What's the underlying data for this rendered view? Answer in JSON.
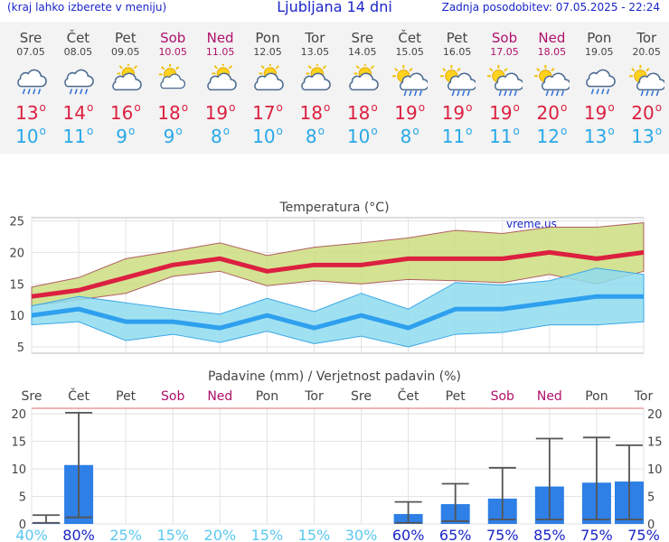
{
  "header": {
    "location_note": "(kraj lahko izberete v meniju)",
    "title": "Ljubljana 14 dni",
    "updated": "Zadnja posodobitev: 07.05.2025 - 22:24"
  },
  "colors": {
    "weekend": "#b0106a",
    "tmax": "#dc2040",
    "tmin": "#28a8e8",
    "precip_bar": "#2e7fe6",
    "prob_low": "#5bc8f0",
    "prob_high": "#1a25c8"
  },
  "days": [
    {
      "name": "Sre",
      "date": "07.05",
      "weekend": false,
      "icon": "cloud-rain-icon",
      "tmax": "13",
      "tmin": "10"
    },
    {
      "name": "Čet",
      "date": "08.05",
      "weekend": false,
      "icon": "cloud-rain-icon",
      "tmax": "14",
      "tmin": "11"
    },
    {
      "name": "Pet",
      "date": "09.05",
      "weekend": false,
      "icon": "partly-cloudy-icon",
      "tmax": "16",
      "tmin": "9"
    },
    {
      "name": "Sob",
      "date": "10.05",
      "weekend": true,
      "icon": "sun-cloud-icon",
      "tmax": "18",
      "tmin": "9"
    },
    {
      "name": "Ned",
      "date": "11.05",
      "weekend": true,
      "icon": "partly-cloudy-icon",
      "tmax": "19",
      "tmin": "8"
    },
    {
      "name": "Pon",
      "date": "12.05",
      "weekend": false,
      "icon": "partly-cloudy-icon",
      "tmax": "17",
      "tmin": "10"
    },
    {
      "name": "Tor",
      "date": "13.05",
      "weekend": false,
      "icon": "partly-cloudy-icon",
      "tmax": "18",
      "tmin": "8"
    },
    {
      "name": "Sre",
      "date": "14.05",
      "weekend": false,
      "icon": "partly-cloudy-icon",
      "tmax": "18",
      "tmin": "10"
    },
    {
      "name": "Čet",
      "date": "15.05",
      "weekend": false,
      "icon": "sun-rain-icon",
      "tmax": "19",
      "tmin": "8"
    },
    {
      "name": "Pet",
      "date": "16.05",
      "weekend": false,
      "icon": "sun-rain-icon",
      "tmax": "19",
      "tmin": "11"
    },
    {
      "name": "Sob",
      "date": "17.05",
      "weekend": true,
      "icon": "sun-rain-icon",
      "tmax": "19",
      "tmin": "11"
    },
    {
      "name": "Ned",
      "date": "18.05",
      "weekend": true,
      "icon": "sun-rain-icon",
      "tmax": "20",
      "tmin": "12"
    },
    {
      "name": "Pon",
      "date": "19.05",
      "weekend": false,
      "icon": "cloud-rain-icon",
      "tmax": "19",
      "tmin": "13"
    },
    {
      "name": "Tor",
      "date": "20.05",
      "weekend": false,
      "icon": "sun-rain-icon",
      "tmax": "20",
      "tmin": "13"
    }
  ],
  "chart_data": [
    {
      "type": "line",
      "title": "Temperatura (°C)",
      "watermark": "vreme.us",
      "categories": [
        "Sre",
        "Čet",
        "Pet",
        "Sob",
        "Ned",
        "Pon",
        "Tor",
        "Sre",
        "Čet",
        "Pet",
        "Sob",
        "Ned",
        "Pon",
        "Tor"
      ],
      "ylim": [
        4,
        25.5
      ],
      "yticks": [
        5,
        10,
        15,
        20,
        25
      ],
      "grid": true,
      "series": [
        {
          "values": [
            13,
            14,
            16,
            18,
            19,
            17,
            18,
            18,
            19,
            19,
            19,
            20,
            19,
            20
          ]
        },
        {
          "values": [
            10,
            11,
            9,
            9,
            8,
            10,
            8,
            10,
            8,
            11,
            11,
            12,
            13,
            13
          ]
        }
      ],
      "bands": [
        {
          "upper": [
            14.5,
            16,
            19,
            20.2,
            21.5,
            19.5,
            20.8,
            21.5,
            22.3,
            23.5,
            23,
            24,
            24,
            24.7
          ],
          "lower": [
            11.5,
            12.5,
            13.5,
            16.2,
            17,
            14.7,
            15.5,
            15,
            15.7,
            15.5,
            15.2,
            16.5,
            15,
            17
          ]
        },
        {
          "upper": [
            11.5,
            13,
            12,
            11,
            10.2,
            12.7,
            10.6,
            13.5,
            11,
            15.2,
            14.8,
            15.5,
            17.5,
            16.5
          ],
          "lower": [
            8.5,
            9,
            6,
            7,
            5.7,
            7.5,
            5.5,
            6.7,
            5,
            7,
            7.3,
            8.5,
            8.5,
            9
          ]
        }
      ]
    },
    {
      "type": "bar",
      "title": "Padavine (mm) / Verjetnost padavin (%)",
      "categories": [
        "Sre",
        "Čet",
        "Pet",
        "Sob",
        "Ned",
        "Pon",
        "Tor",
        "Sre",
        "Čet",
        "Pet",
        "Sob",
        "Ned",
        "Pon",
        "Tor"
      ],
      "values": [
        0.1,
        10.7,
        0,
        0,
        0,
        0,
        0,
        0,
        1.8,
        3.6,
        4.6,
        6.8,
        7.5,
        7.7
      ],
      "error_low": [
        0.2,
        1.2,
        0,
        0,
        0,
        0,
        0,
        0,
        0.2,
        0.5,
        0.8,
        0.8,
        0.8,
        0.8
      ],
      "error_high": [
        1.6,
        20.2,
        0,
        0,
        0,
        0,
        0,
        0,
        4.0,
        7.3,
        10.2,
        15.5,
        15.7,
        14.3
      ],
      "probability": [
        "40%",
        "80%",
        "25%",
        "15%",
        "20%",
        "15%",
        "15%",
        "30%",
        "60%",
        "65%",
        "75%",
        "85%",
        "75%",
        "75%"
      ],
      "ylim": [
        0,
        21
      ],
      "yticks": [
        0,
        5,
        10,
        15,
        20
      ],
      "grid": true
    }
  ]
}
